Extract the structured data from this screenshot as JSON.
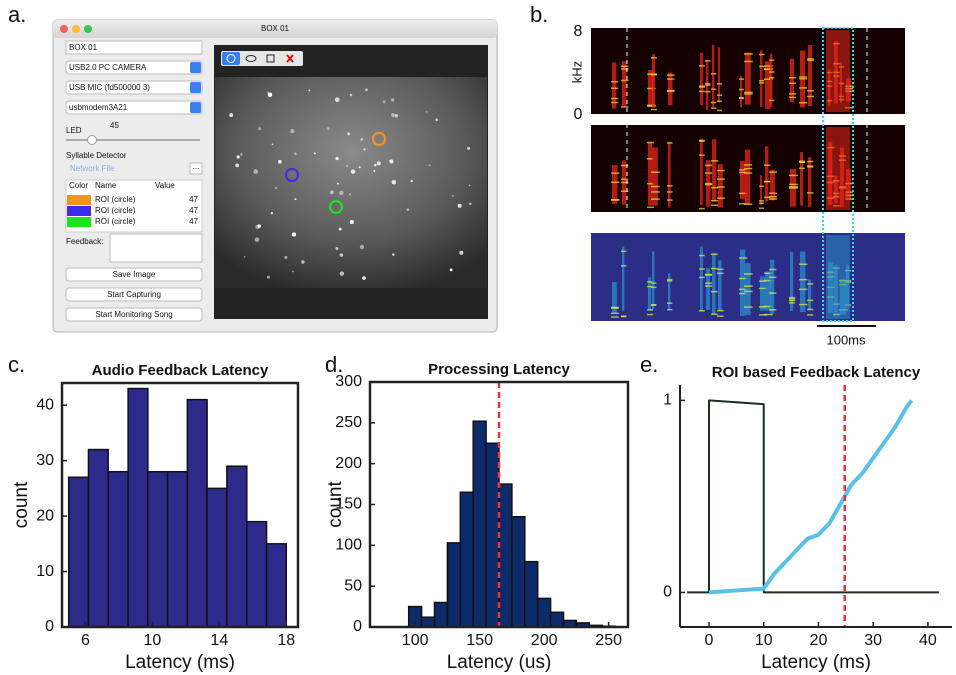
{
  "panel_labels": [
    "a.",
    "b.",
    "c.",
    "d.",
    "e."
  ],
  "app": {
    "window_title": "BOX 01",
    "name_field": "BOX 01",
    "camera": "USB2.0 PC CAMERA",
    "mic": "USB MIC (fd500000 3)",
    "port": "usbmodem3A21",
    "led_label": "LED",
    "led_value": 45,
    "detector_label": "Syllable Detector",
    "network_file": "Network File",
    "browse": "...",
    "table": {
      "headers": [
        "Color",
        "Name",
        "Value"
      ],
      "rows": [
        {
          "color": "#f7941d",
          "name": "ROI (circle)",
          "value": 47
        },
        {
          "color": "#3d2bf0",
          "name": "ROI (circle)",
          "value": 47
        },
        {
          "color": "#22e022",
          "name": "ROI (circle)",
          "value": 47
        }
      ]
    },
    "feedback_label": "Feedback:",
    "buttons": [
      "Save Image",
      "Start Capturing",
      "Start Monitoring Song"
    ]
  },
  "spectrogram": {
    "y_top": "8",
    "y_label": "kHz",
    "y_bottom": "0",
    "scale_bar": "100ms"
  },
  "chart_data": [
    {
      "type": "histogram",
      "title": "Audio Feedback Latency",
      "x_label": "Latency (ms)",
      "y_label": "count",
      "color": "#2e2a8c",
      "bins": [
        5,
        6.18,
        7.36,
        8.55,
        9.73,
        10.91,
        12.09,
        13.27,
        14.45,
        15.64,
        16.82,
        18
      ],
      "values": [
        27,
        32,
        28,
        43,
        28,
        28,
        41,
        25,
        29,
        19,
        15
      ],
      "xlim": [
        4.6,
        18.7
      ],
      "ylim": [
        0,
        44
      ],
      "xticks": [
        6,
        10,
        14,
        18
      ],
      "yticks": [
        0,
        10,
        20,
        30,
        40
      ]
    },
    {
      "type": "histogram",
      "title": "Processing Latency",
      "x_label": "Latency (us)",
      "y_label": "count",
      "color": "#0d2a6b",
      "bins": [
        95,
        105,
        115,
        125,
        135,
        145,
        155,
        165,
        175,
        185,
        195,
        205,
        215,
        225,
        235,
        245,
        255
      ],
      "values": [
        25,
        12,
        30,
        103,
        165,
        252,
        225,
        175,
        135,
        80,
        35,
        18,
        8,
        5,
        2,
        1
      ],
      "vline": {
        "value": 165,
        "color": "#e8343a"
      },
      "xlim": [
        65,
        265
      ],
      "ylim": [
        0,
        300
      ],
      "xticks": [
        100,
        150,
        200,
        250
      ],
      "yticks": [
        0,
        50,
        100,
        150,
        200,
        250,
        300
      ]
    },
    {
      "type": "line",
      "title": "ROI based Feedback Latency",
      "x_label": "Latency (ms)",
      "series": [
        {
          "color": "#1b2e1b",
          "x": [
            -4,
            0,
            0,
            10,
            10,
            42
          ],
          "values": [
            0,
            0,
            1,
            0.98,
            0,
            0
          ]
        },
        {
          "color": "#5bc0e8",
          "x": [
            0,
            10,
            12,
            14,
            16,
            18,
            20,
            22,
            24,
            26,
            28,
            30,
            32,
            34,
            36,
            37
          ],
          "values": [
            0,
            0.02,
            0.1,
            0.16,
            0.22,
            0.28,
            0.3,
            0.36,
            0.46,
            0.56,
            0.62,
            0.7,
            0.78,
            0.86,
            0.96,
            1
          ]
        }
      ],
      "vline": {
        "value": 24.8,
        "color": "#e8343a"
      },
      "xlim": [
        -5.3,
        44.4
      ],
      "ylim": [
        -0.18,
        1.08
      ],
      "xticks": [
        0,
        10,
        20,
        30,
        40
      ],
      "yticks": [
        0,
        1
      ]
    }
  ]
}
